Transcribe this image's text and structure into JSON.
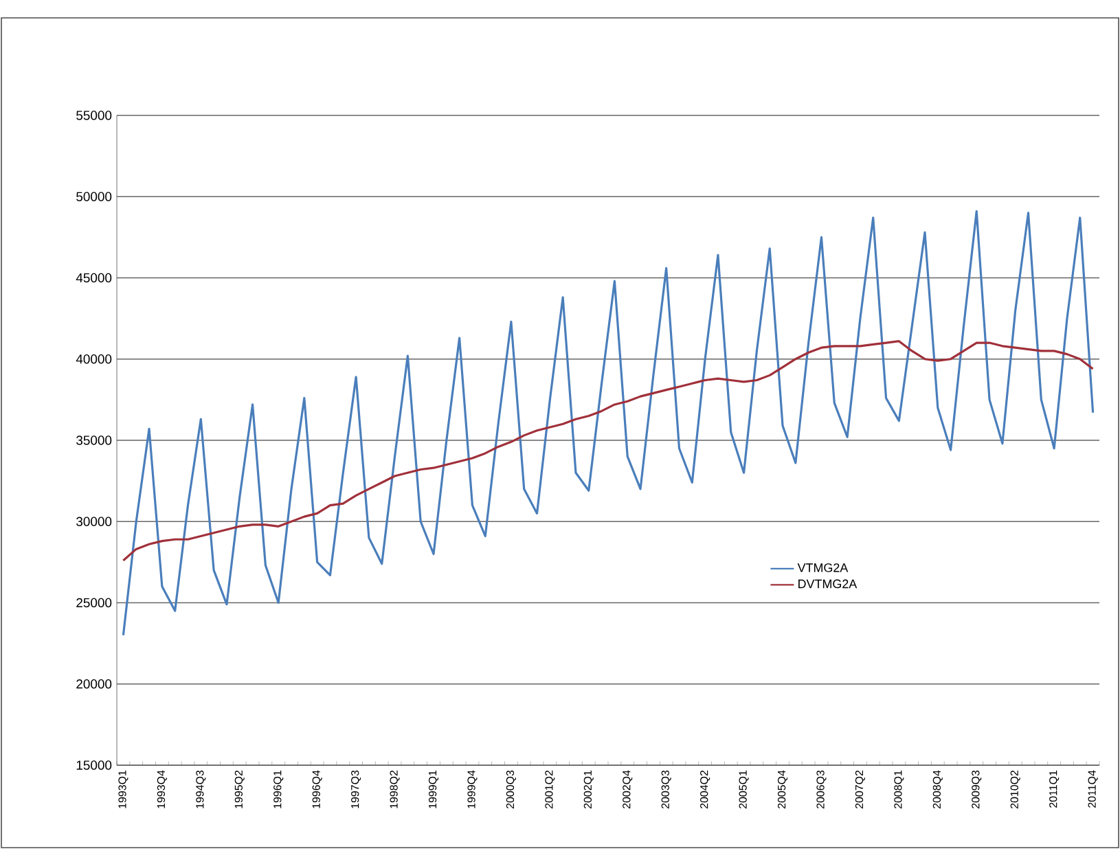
{
  "chart_data": {
    "type": "line",
    "categories": [
      "1993Q1",
      null,
      null,
      "1993Q4",
      null,
      null,
      "1994Q3",
      null,
      null,
      "1995Q2",
      null,
      null,
      "1996Q1",
      null,
      null,
      "1996Q4",
      null,
      null,
      "1997Q3",
      null,
      null,
      "1998Q2",
      null,
      null,
      "1999Q1",
      null,
      null,
      "1999Q4",
      null,
      null,
      "2000Q3",
      null,
      null,
      "2001Q2",
      null,
      null,
      "2002Q1",
      null,
      null,
      "2002Q4",
      null,
      null,
      "2003Q3",
      null,
      null,
      "2004Q2",
      null,
      null,
      "2005Q1",
      null,
      null,
      "2005Q4",
      null,
      null,
      "2006Q3",
      null,
      null,
      "2007Q2",
      null,
      null,
      "2008Q1",
      null,
      null,
      "2008Q4",
      null,
      null,
      "2009Q3",
      null,
      null,
      "2010Q2",
      null,
      null,
      "2011Q1",
      null,
      null,
      "2011Q4"
    ],
    "series": [
      {
        "name": "VTMG2A",
        "color": "#4a7ebb",
        "values": [
          23000,
          30000,
          35700,
          26000,
          24500,
          31000,
          36300,
          27000,
          24900,
          31500,
          37200,
          27300,
          25000,
          32000,
          37600,
          27500,
          26700,
          33000,
          38900,
          29000,
          27400,
          34000,
          40200,
          30000,
          28000,
          35000,
          41300,
          31000,
          29100,
          36000,
          42300,
          32000,
          30500,
          37500,
          43800,
          33000,
          31900,
          38500,
          44800,
          34000,
          32000,
          39000,
          45600,
          34500,
          32400,
          40000,
          46400,
          35500,
          33000,
          40500,
          46800,
          35900,
          33600,
          41000,
          47500,
          37300,
          35200,
          42500,
          48700,
          37600,
          36200,
          42000,
          47800,
          37000,
          34400,
          42000,
          49100,
          37500,
          34800,
          43000,
          49000,
          37500,
          34500,
          42500,
          48700,
          36700
        ]
      },
      {
        "name": "DVTMG2A",
        "color": "#a0303a",
        "values": [
          27600,
          28300,
          28600,
          28800,
          28900,
          28900,
          29100,
          29300,
          29500,
          29700,
          29800,
          29800,
          29700,
          30000,
          30300,
          30500,
          31000,
          31100,
          31600,
          32000,
          32400,
          32800,
          33000,
          33200,
          33300,
          33500,
          33700,
          33900,
          34200,
          34600,
          34900,
          35300,
          35600,
          35800,
          36000,
          36300,
          36500,
          36800,
          37200,
          37400,
          37700,
          37900,
          38100,
          38300,
          38500,
          38700,
          38800,
          38700,
          38600,
          38700,
          39000,
          39500,
          40000,
          40400,
          40700,
          40800,
          40800,
          40800,
          40900,
          41000,
          41100,
          40500,
          40000,
          39900,
          40000,
          40500,
          41000,
          41000,
          40800,
          40700,
          40600,
          40500,
          40500,
          40300,
          40000,
          39400
        ]
      }
    ],
    "ylim": [
      15000,
      55000
    ],
    "yticks": [
      15000,
      20000,
      25000,
      30000,
      35000,
      40000,
      45000,
      50000,
      55000
    ],
    "grid": "y",
    "legend": "right",
    "marker": "none",
    "line_style": "solid"
  }
}
